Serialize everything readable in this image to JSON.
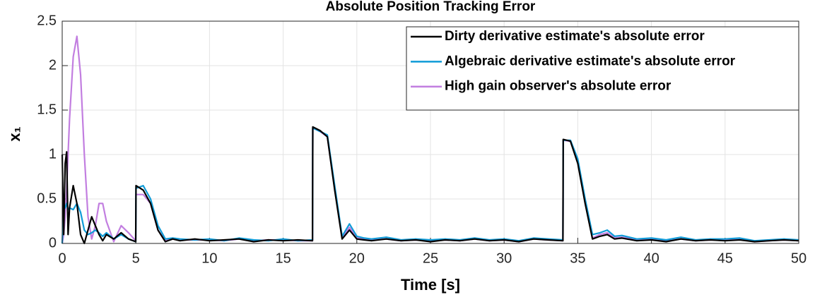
{
  "chart_data": {
    "type": "line",
    "title": "Absolute Position Tracking Error",
    "xlabel": "Time [s]",
    "ylabel": "x₁",
    "x": [
      0,
      0.1,
      0.2,
      0.3,
      0.4,
      0.5,
      0.75,
      1,
      1.25,
      1.5,
      1.75,
      2,
      2.25,
      2.5,
      2.75,
      3,
      3.5,
      4,
      4.5,
      4.99,
      5.01,
      5.5,
      6,
      6.5,
      7,
      7.5,
      8,
      9,
      10,
      11,
      12,
      13,
      14,
      15,
      16,
      16.99,
      17.01,
      17.5,
      18,
      18.5,
      19,
      19.5,
      20,
      20.5,
      21,
      22,
      23,
      24,
      25,
      26,
      27,
      28,
      29,
      30,
      31,
      32,
      33,
      33.99,
      34.01,
      34.5,
      35,
      35.5,
      36,
      36.5,
      37,
      37.5,
      38,
      39,
      40,
      41,
      42,
      43,
      44,
      45,
      46,
      47,
      48,
      49,
      50
    ],
    "series": [
      {
        "name": "Dirty derivative estimate's absolute error",
        "color": "#000000",
        "values": [
          1.0,
          0.1,
          0.9,
          1.03,
          0.1,
          0.4,
          0.65,
          0.45,
          0.1,
          0.0,
          0.15,
          0.3,
          0.2,
          0.1,
          0.03,
          0.1,
          0.05,
          0.12,
          0.05,
          0.02,
          0.65,
          0.6,
          0.45,
          0.15,
          0.02,
          0.05,
          0.03,
          0.05,
          0.03,
          0.04,
          0.05,
          0.02,
          0.04,
          0.03,
          0.04,
          0.03,
          1.31,
          1.27,
          1.2,
          0.6,
          0.05,
          0.15,
          0.05,
          0.04,
          0.03,
          0.05,
          0.03,
          0.04,
          0.02,
          0.04,
          0.03,
          0.05,
          0.03,
          0.04,
          0.02,
          0.05,
          0.04,
          0.03,
          1.17,
          1.15,
          0.9,
          0.45,
          0.05,
          0.08,
          0.1,
          0.05,
          0.06,
          0.03,
          0.04,
          0.02,
          0.05,
          0.03,
          0.04,
          0.03,
          0.04,
          0.02,
          0.03,
          0.04,
          0.03
        ]
      },
      {
        "name": "Algebraic derivative estimate's absolute error",
        "color": "#0f9bd7",
        "values": [
          0.0,
          0.45,
          0.4,
          0.45,
          0.38,
          0.4,
          0.38,
          0.45,
          0.35,
          0.15,
          0.1,
          0.12,
          0.15,
          0.12,
          0.08,
          0.12,
          0.05,
          0.1,
          0.05,
          0.02,
          0.62,
          0.65,
          0.5,
          0.2,
          0.05,
          0.06,
          0.05,
          0.04,
          0.05,
          0.03,
          0.06,
          0.04,
          0.03,
          0.05,
          0.03,
          0.04,
          1.3,
          1.26,
          1.22,
          0.65,
          0.08,
          0.22,
          0.08,
          0.06,
          0.05,
          0.07,
          0.04,
          0.05,
          0.04,
          0.05,
          0.04,
          0.06,
          0.04,
          0.05,
          0.03,
          0.06,
          0.05,
          0.04,
          1.16,
          1.16,
          0.95,
          0.5,
          0.1,
          0.12,
          0.15,
          0.08,
          0.09,
          0.05,
          0.06,
          0.04,
          0.07,
          0.04,
          0.05,
          0.05,
          0.06,
          0.03,
          0.04,
          0.05,
          0.04
        ]
      },
      {
        "name": "High gain observer's absolute error",
        "color": "#c27ee0",
        "values": [
          0.0,
          0.1,
          0.3,
          0.6,
          1.0,
          1.4,
          2.1,
          2.33,
          1.9,
          1.0,
          0.3,
          0.05,
          0.2,
          0.45,
          0.45,
          0.25,
          0.02,
          0.2,
          0.12,
          0.03,
          0.55,
          0.55,
          0.45,
          0.15,
          0.03,
          0.05,
          0.04,
          0.04,
          0.04,
          0.03,
          0.05,
          0.03,
          0.04,
          0.04,
          0.03,
          0.03,
          1.3,
          1.26,
          1.2,
          0.62,
          0.06,
          0.18,
          0.06,
          0.05,
          0.04,
          0.05,
          0.03,
          0.04,
          0.03,
          0.04,
          0.03,
          0.05,
          0.03,
          0.04,
          0.02,
          0.05,
          0.04,
          0.03,
          1.16,
          1.15,
          0.92,
          0.47,
          0.06,
          0.1,
          0.12,
          0.06,
          0.07,
          0.04,
          0.05,
          0.03,
          0.05,
          0.03,
          0.04,
          0.04,
          0.05,
          0.02,
          0.03,
          0.04,
          0.03
        ]
      }
    ],
    "xlim": [
      0,
      50
    ],
    "xticks": [
      0,
      5,
      10,
      15,
      20,
      25,
      30,
      35,
      40,
      45,
      50
    ],
    "ylim": [
      0,
      2.5
    ],
    "yticks": [
      0,
      0.5,
      1,
      1.5,
      2,
      2.5
    ],
    "grid": true,
    "legend": "top-right"
  }
}
